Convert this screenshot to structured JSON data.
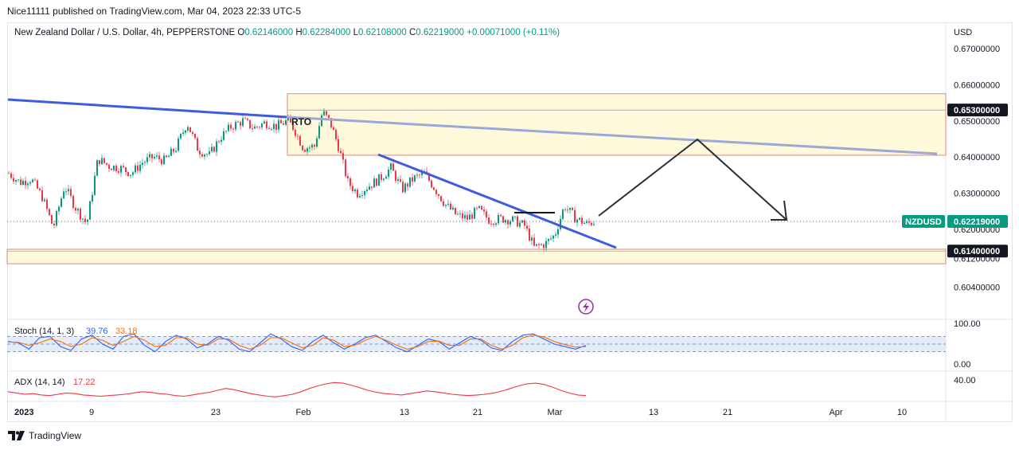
{
  "header": {
    "publish_line": "Nice11111 published on TradingView.com, Mar 04, 2023 22:33 UTC-5"
  },
  "symbol_line": {
    "name": "New Zealand Dollar / U.S. Dollar, 4h, PEPPERSTONE",
    "o_label": "O",
    "o_value": "0.62146000",
    "h_label": "H",
    "h_value": "0.62284000",
    "l_label": "L",
    "l_value": "0.62108000",
    "c_label": "C",
    "c_value": "0.62219000",
    "change": "+0.00071000 (+0.11%)"
  },
  "colors": {
    "up": "#089981",
    "down": "#f23645",
    "zone_fill": "#fff9dc",
    "zone_border": "#e06666",
    "trendline": "#3d5ce0",
    "trendline_light": "#9aa9d8",
    "arrow": "#2a2e39",
    "stoch_k": "#2962ff",
    "stoch_d": "#ff6d00",
    "stoch_band": "#d6e4fa",
    "adx": "#f23645",
    "badge_dark": "#131722",
    "badge_symbol": "#089981",
    "lightning": "#9c27b0"
  },
  "chart_data": [
    {
      "type": "candlestick",
      "title": "New Zealand Dollar / U.S. Dollar, 4h, PEPPERSTONE",
      "ylabel": "USD",
      "y_ticks": [
        "0.67000000",
        "0.66000000",
        "0.65000000",
        "0.64000000",
        "0.63000000",
        "0.62000000",
        "0.61200000",
        "0.60400000"
      ],
      "x_ticks": [
        "2023",
        "9",
        "23",
        "Feb",
        "13",
        "21",
        "Mar",
        "13",
        "21",
        "Apr",
        "10"
      ],
      "ylim": [
        0.6,
        0.675
      ],
      "close_path": [
        [
          0,
          0.6355
        ],
        [
          14,
          0.633
        ],
        [
          28,
          0.634
        ],
        [
          42,
          0.629
        ],
        [
          56,
          0.6205
        ],
        [
          70,
          0.632
        ],
        [
          84,
          0.626
        ],
        [
          98,
          0.6215
        ],
        [
          112,
          0.6395
        ],
        [
          126,
          0.6375
        ],
        [
          140,
          0.637
        ],
        [
          154,
          0.6355
        ],
        [
          168,
          0.6385
        ],
        [
          182,
          0.64
        ],
        [
          196,
          0.639
        ],
        [
          210,
          0.6425
        ],
        [
          224,
          0.6495
        ],
        [
          238,
          0.642
        ],
        [
          252,
          0.6405
        ],
        [
          266,
          0.6455
        ],
        [
          280,
          0.6485
        ],
        [
          294,
          0.65
        ],
        [
          308,
          0.648
        ],
        [
          322,
          0.6495
        ],
        [
          336,
          0.6485
        ],
        [
          350,
          0.65
        ],
        [
          358,
          0.648
        ],
        [
          370,
          0.6425
        ],
        [
          384,
          0.643
        ],
        [
          394,
          0.6525
        ],
        [
          404,
          0.6495
        ],
        [
          414,
          0.643
        ],
        [
          426,
          0.633
        ],
        [
          438,
          0.63
        ],
        [
          452,
          0.632
        ],
        [
          466,
          0.634
        ],
        [
          480,
          0.637
        ],
        [
          494,
          0.631
        ],
        [
          508,
          0.634
        ],
        [
          522,
          0.6355
        ],
        [
          536,
          0.631
        ],
        [
          548,
          0.627
        ],
        [
          562,
          0.624
        ],
        [
          576,
          0.623
        ],
        [
          590,
          0.6255
        ],
        [
          604,
          0.6225
        ],
        [
          620,
          0.623
        ],
        [
          634,
          0.6225
        ],
        [
          648,
          0.621
        ],
        [
          660,
          0.615
        ],
        [
          674,
          0.616
        ],
        [
          686,
          0.6185
        ],
        [
          698,
          0.6265
        ],
        [
          712,
          0.623
        ],
        [
          726,
          0.6215
        ],
        [
          736,
          0.6222
        ]
      ],
      "current_price": "0.62219000",
      "current_label": "NZDUSD",
      "levels": [
        {
          "price": "0.65300000",
          "value": 0.653
        },
        {
          "price": "0.61400000",
          "value": 0.614
        }
      ],
      "zones": [
        {
          "from": 0.6405,
          "to": 0.6575
        },
        {
          "from": 0.6105,
          "to": 0.6145
        }
      ],
      "annotations": [
        "RTO"
      ],
      "projection": [
        "up",
        "down"
      ]
    },
    {
      "type": "line",
      "title": "Stoch (14, 1, 3)",
      "values_text": [
        "39.76",
        "33.18"
      ],
      "y_ticks": [
        "100.00",
        "0.00"
      ],
      "band": [
        20,
        80
      ],
      "series": [
        {
          "name": "%K",
          "values": [
            60,
            55,
            30,
            75,
            80,
            40,
            25,
            70,
            85,
            50,
            30,
            80,
            90,
            45,
            20,
            60,
            85,
            70,
            35,
            50,
            80,
            65,
            30,
            20,
            55,
            90,
            70,
            40,
            25,
            60,
            85,
            55,
            30,
            50,
            75,
            85,
            60,
            35,
            20,
            45,
            70,
            60,
            30,
            55,
            80,
            65,
            35,
            25,
            60,
            85,
            90,
            70,
            50,
            40,
            30,
            45
          ]
        },
        {
          "name": "%D",
          "values": [
            58,
            57,
            45,
            55,
            70,
            60,
            40,
            50,
            75,
            65,
            45,
            60,
            80,
            65,
            40,
            45,
            75,
            75,
            50,
            45,
            70,
            70,
            45,
            30,
            45,
            75,
            75,
            55,
            35,
            45,
            75,
            65,
            40,
            45,
            65,
            80,
            65,
            45,
            30,
            40,
            60,
            62,
            45,
            45,
            70,
            70,
            45,
            30,
            45,
            75,
            85,
            78,
            60,
            48,
            38,
            40
          ]
        }
      ]
    },
    {
      "type": "line",
      "title": "ADX (14, 14)",
      "values_text": [
        "17.22"
      ],
      "y_ticks": [
        "40.00"
      ],
      "series": [
        {
          "name": "ADX",
          "values": [
            22,
            20,
            18,
            19,
            17,
            16,
            18,
            20,
            19,
            17,
            16,
            15,
            16,
            17,
            18,
            20,
            22,
            21,
            19,
            18,
            16,
            15,
            17,
            19,
            21,
            24,
            27,
            25,
            22,
            19,
            17,
            15,
            14,
            16,
            18,
            22,
            27,
            31,
            34,
            36,
            35,
            32,
            28,
            24,
            21,
            19,
            18,
            17,
            19,
            21,
            23,
            22,
            20,
            18,
            17,
            16,
            17,
            18,
            20,
            23,
            27,
            31,
            34,
            35,
            33,
            29,
            24,
            20,
            17,
            16
          ]
        }
      ]
    }
  ],
  "ui": {
    "lightning_icon": "lightning-icon",
    "footer_label": "TradingView"
  }
}
